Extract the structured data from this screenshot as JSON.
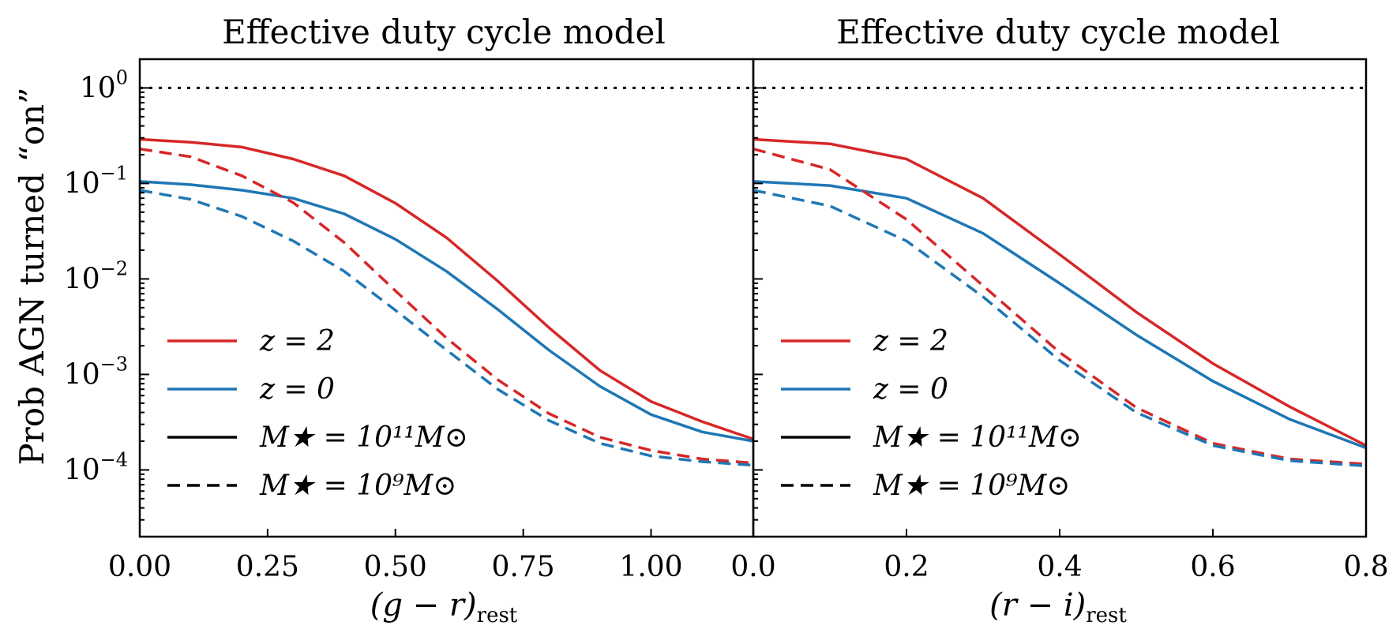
{
  "chart_data": [
    {
      "type": "line",
      "title": "Effective duty cycle model",
      "xlabel": "(g − r)",
      "xlabel_sub": "rest",
      "ylabel": "Prob AGN turned “on”",
      "xlim": [
        0,
        1.2
      ],
      "ylim": [
        2e-05,
        2
      ],
      "yscale": "log",
      "xticks": [
        0.0,
        0.25,
        0.5,
        0.75,
        1.0
      ],
      "xtick_labels": [
        "0.00",
        "0.25",
        "0.50",
        "0.75",
        "1.00"
      ],
      "yticks": [
        {
          "value": 1,
          "base": "10",
          "exp": "0"
        },
        {
          "value": 0.1,
          "base": "10",
          "exp": "−1"
        },
        {
          "value": 0.01,
          "base": "10",
          "exp": "−2"
        },
        {
          "value": 0.001,
          "base": "10",
          "exp": "−3"
        },
        {
          "value": 0.0001,
          "base": "10",
          "exp": "−4"
        }
      ],
      "reference_line": {
        "y": 1,
        "style": "dotted",
        "color": "#000000"
      },
      "series": [
        {
          "color": "#d62728",
          "dash": "solid",
          "x": [
            0,
            0.1,
            0.2,
            0.3,
            0.4,
            0.5,
            0.6,
            0.7,
            0.8,
            0.9,
            1.0,
            1.1,
            1.2
          ],
          "y": [
            0.29,
            0.27,
            0.24,
            0.18,
            0.12,
            0.062,
            0.027,
            0.0095,
            0.0031,
            0.0011,
            0.00052,
            0.00032,
            0.00021
          ]
        },
        {
          "color": "#1f77b4",
          "dash": "solid",
          "x": [
            0,
            0.1,
            0.2,
            0.3,
            0.4,
            0.5,
            0.6,
            0.7,
            0.8,
            0.9,
            1.0,
            1.1,
            1.2
          ],
          "y": [
            0.105,
            0.097,
            0.085,
            0.07,
            0.048,
            0.026,
            0.012,
            0.0048,
            0.0018,
            0.00075,
            0.00038,
            0.00025,
            0.0002
          ]
        },
        {
          "color": "#d62728",
          "dash": "dashed",
          "x": [
            0,
            0.1,
            0.2,
            0.3,
            0.4,
            0.5,
            0.6,
            0.7,
            0.8,
            0.9,
            1.0,
            1.1,
            1.2
          ],
          "y": [
            0.23,
            0.19,
            0.12,
            0.063,
            0.024,
            0.0075,
            0.0024,
            0.00088,
            0.00039,
            0.00022,
            0.00016,
            0.00013,
            0.000118
          ]
        },
        {
          "color": "#1f77b4",
          "dash": "dashed",
          "x": [
            0,
            0.1,
            0.2,
            0.3,
            0.4,
            0.5,
            0.6,
            0.7,
            0.8,
            0.9,
            1.0,
            1.1,
            1.2
          ],
          "y": [
            0.085,
            0.068,
            0.045,
            0.025,
            0.012,
            0.0047,
            0.0018,
            0.0007,
            0.00033,
            0.00019,
            0.00014,
            0.000122,
            0.000112
          ]
        }
      ],
      "legend": {
        "placement": "lower-left",
        "entries": [
          {
            "label": "z = 2",
            "color": "#d62728",
            "dash": "solid"
          },
          {
            "label": "z = 0",
            "color": "#1f77b4",
            "dash": "solid"
          },
          {
            "label": "M★ = 10¹¹M⊙",
            "color": "#000000",
            "dash": "solid"
          },
          {
            "label": "M★ = 10⁹M⊙",
            "color": "#000000",
            "dash": "dashed"
          }
        ]
      }
    },
    {
      "type": "line",
      "title": "Effective duty cycle model",
      "xlabel": "(r − i)",
      "xlabel_sub": "rest",
      "xlim": [
        0,
        0.8
      ],
      "ylim": [
        2e-05,
        2
      ],
      "yscale": "log",
      "xticks": [
        0.0,
        0.2,
        0.4,
        0.6,
        0.8
      ],
      "xtick_labels": [
        "0.0",
        "0.2",
        "0.4",
        "0.6",
        "0.8"
      ],
      "reference_line": {
        "y": 1,
        "style": "dotted",
        "color": "#000000"
      },
      "series": [
        {
          "color": "#d62728",
          "dash": "solid",
          "x": [
            0,
            0.1,
            0.2,
            0.3,
            0.4,
            0.5,
            0.6,
            0.7,
            0.8
          ],
          "y": [
            0.29,
            0.26,
            0.18,
            0.07,
            0.018,
            0.0045,
            0.0013,
            0.00046,
            0.00018
          ]
        },
        {
          "color": "#1f77b4",
          "dash": "solid",
          "x": [
            0,
            0.1,
            0.2,
            0.3,
            0.4,
            0.5,
            0.6,
            0.7,
            0.8
          ],
          "y": [
            0.105,
            0.095,
            0.07,
            0.03,
            0.009,
            0.0026,
            0.00085,
            0.00034,
            0.00017
          ]
        },
        {
          "color": "#d62728",
          "dash": "dashed",
          "x": [
            0,
            0.1,
            0.2,
            0.3,
            0.4,
            0.5,
            0.6,
            0.7,
            0.8
          ],
          "y": [
            0.23,
            0.14,
            0.042,
            0.0085,
            0.0017,
            0.00045,
            0.00019,
            0.00013,
            0.000115
          ]
        },
        {
          "color": "#1f77b4",
          "dash": "dashed",
          "x": [
            0,
            0.1,
            0.2,
            0.3,
            0.4,
            0.5,
            0.6,
            0.7,
            0.8
          ],
          "y": [
            0.085,
            0.058,
            0.025,
            0.0065,
            0.0014,
            0.0004,
            0.00018,
            0.000125,
            0.00011
          ]
        }
      ],
      "legend": {
        "placement": "lower-left",
        "entries": [
          {
            "label": "z = 2",
            "color": "#d62728",
            "dash": "solid"
          },
          {
            "label": "z = 0",
            "color": "#1f77b4",
            "dash": "solid"
          },
          {
            "label": "M★ = 10¹¹M⊙",
            "color": "#000000",
            "dash": "solid"
          },
          {
            "label": "M★ = 10⁹M⊙",
            "color": "#000000",
            "dash": "dashed"
          }
        ]
      }
    }
  ]
}
